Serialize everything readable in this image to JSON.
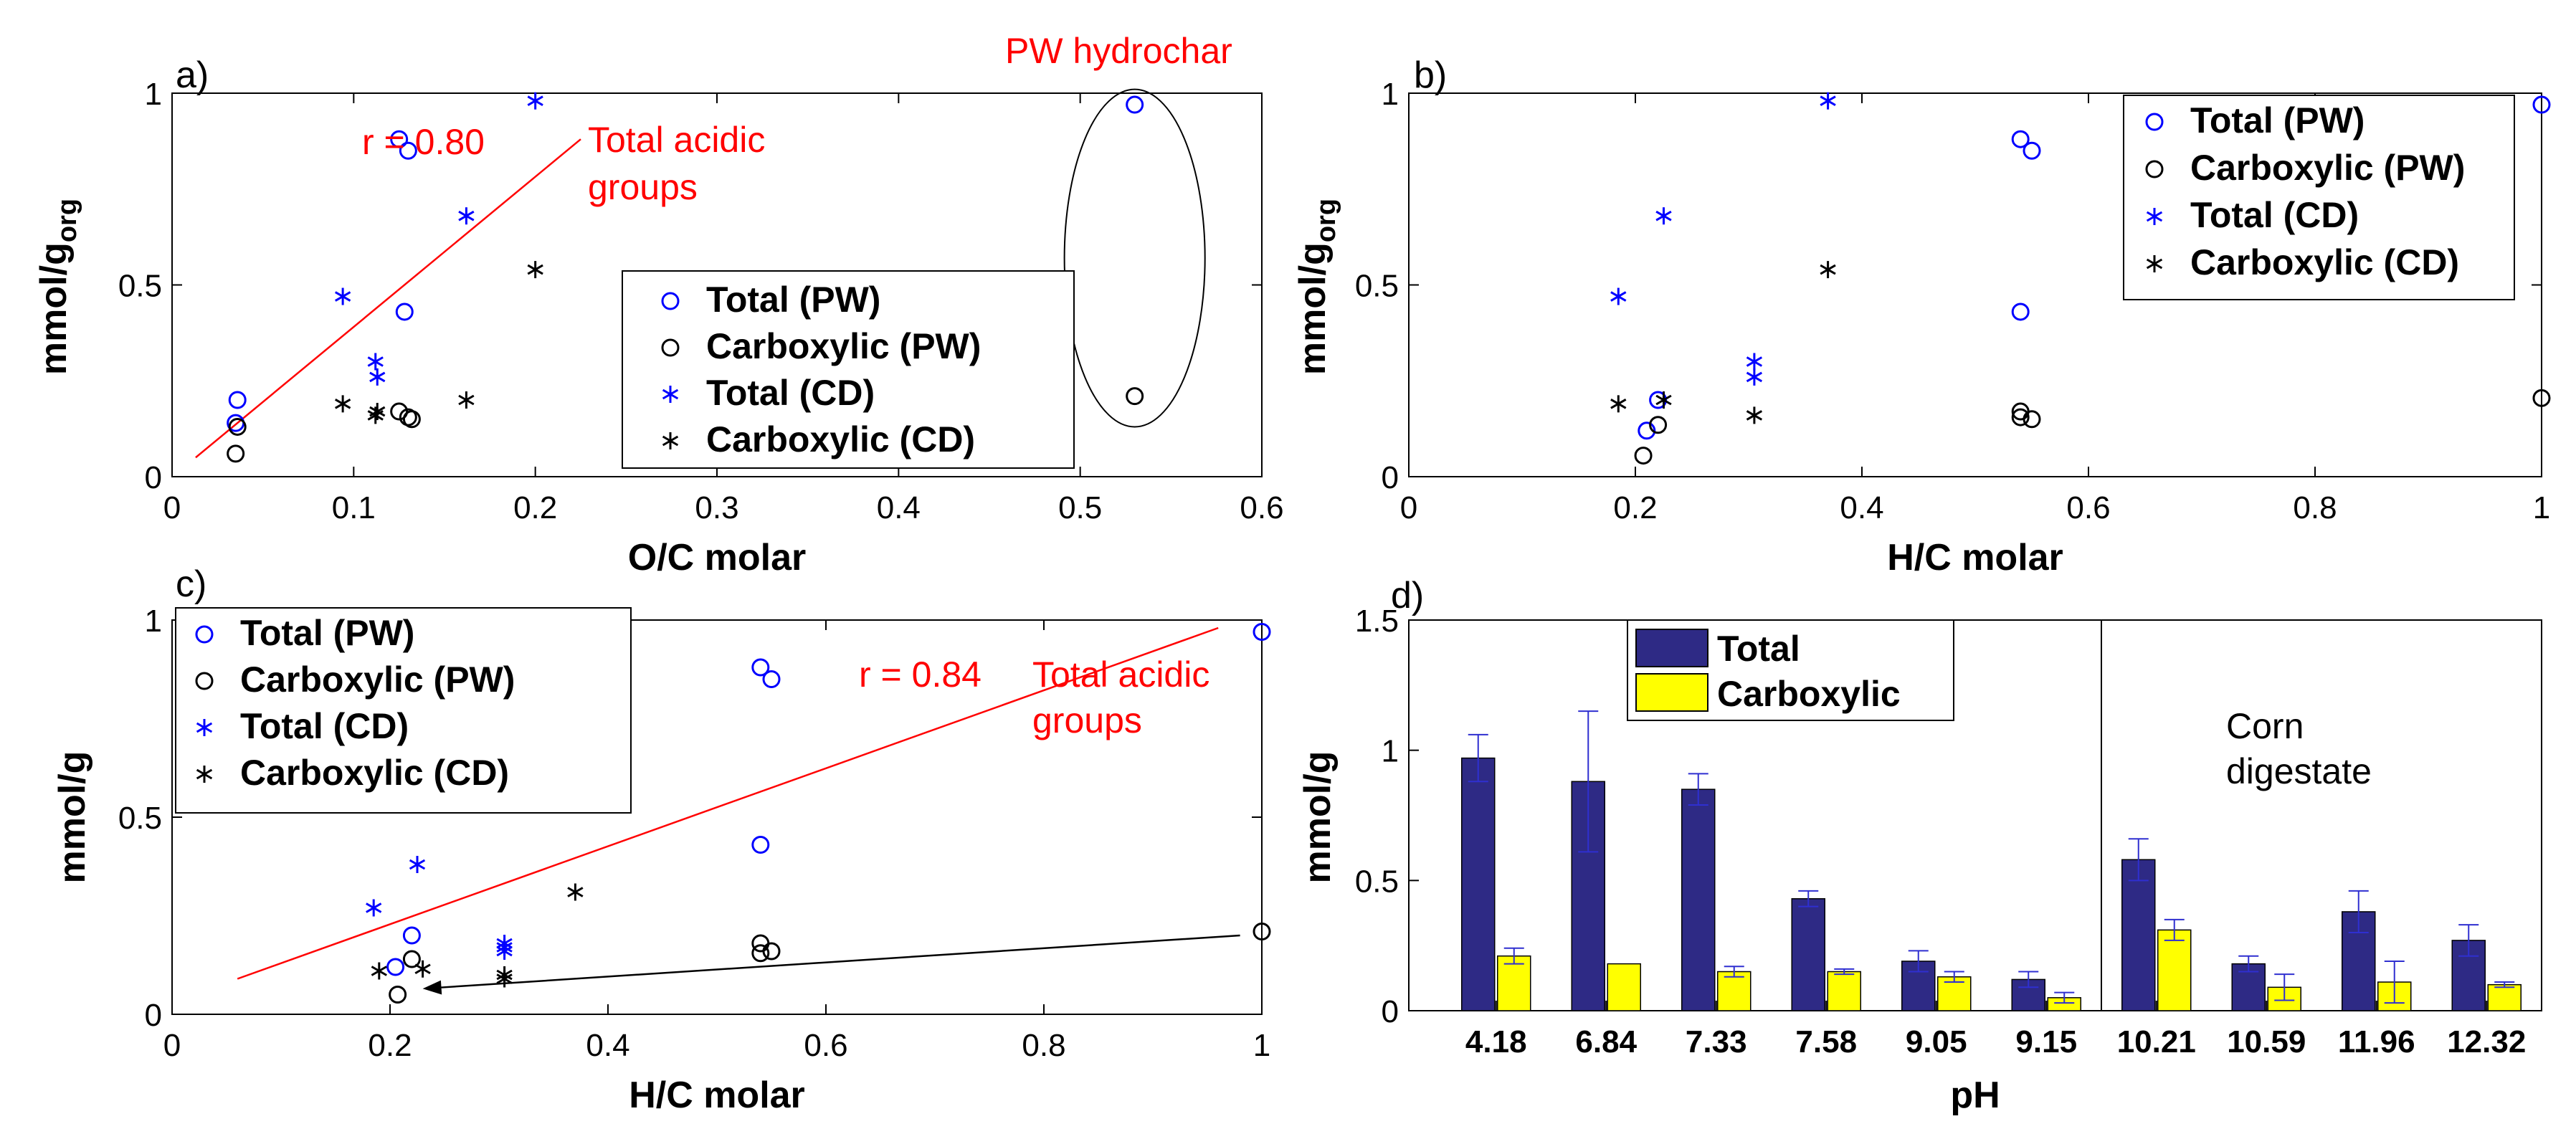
{
  "colors": {
    "total": "#0000ff",
    "carboxylic": "#000000",
    "fit": "#ff0000",
    "bar_total": "#2e2a85",
    "bar_carboxylic": "#ffff00",
    "errorbar": "#2f2fd0"
  },
  "chart_data": [
    {
      "id": "a",
      "type": "scatter",
      "panel_label": "a)",
      "xlabel": "O/C molar",
      "ylabel_main": "mmol/g",
      "ylabel_sub": "org",
      "xlim": [
        0,
        0.6
      ],
      "ylim": [
        0,
        1
      ],
      "xticks": [
        "0",
        "0.1",
        "0.2",
        "0.3",
        "0.4",
        "0.5",
        "0.6"
      ],
      "xtick_values": [
        0,
        0.1,
        0.2,
        0.3,
        0.4,
        0.5,
        0.6
      ],
      "yticks": [
        "0",
        "0.5",
        "1"
      ],
      "ytick_values": [
        0,
        0.5,
        1
      ],
      "legend": [
        "Total (PW)",
        "Carboxylic (PW)",
        "Total (CD)",
        "Carboxylic (CD)"
      ],
      "legend_position": "bottom-center",
      "series": [
        {
          "name": "Total (PW)",
          "marker": "circle",
          "color": "total",
          "points": [
            [
              0.036,
              0.2
            ],
            [
              0.035,
              0.14
            ],
            [
              0.125,
              0.88
            ],
            [
              0.13,
              0.85
            ],
            [
              0.128,
              0.43
            ],
            [
              0.53,
              0.97
            ]
          ]
        },
        {
          "name": "Carboxylic (PW)",
          "marker": "circle",
          "color": "carboxylic",
          "points": [
            [
              0.035,
              0.06
            ],
            [
              0.036,
              0.13
            ],
            [
              0.125,
              0.17
            ],
            [
              0.13,
              0.155
            ],
            [
              0.132,
              0.15
            ],
            [
              0.53,
              0.21
            ]
          ]
        },
        {
          "name": "Total (CD)",
          "marker": "star",
          "color": "total",
          "points": [
            [
              0.2,
              0.98
            ],
            [
              0.162,
              0.68
            ],
            [
              0.094,
              0.47
            ],
            [
              0.112,
              0.3
            ],
            [
              0.113,
              0.26
            ]
          ]
        },
        {
          "name": "Carboxylic (CD)",
          "marker": "star",
          "color": "carboxylic",
          "points": [
            [
              0.2,
              0.54
            ],
            [
              0.094,
              0.19
            ],
            [
              0.162,
              0.2
            ],
            [
              0.112,
              0.16
            ],
            [
              0.113,
              0.17
            ]
          ]
        }
      ],
      "fit_line": {
        "from": [
          0.013,
          0.05
        ],
        "to": [
          0.225,
          0.88
        ]
      },
      "annotations": {
        "r_label": "r = 0.80",
        "group_line1": "Total acidic",
        "group_line2": "groups",
        "highlight_label": "PW hydrochar"
      },
      "highlight_ellipse": {
        "center": [
          0.53,
          0.57
        ],
        "rx": 0.009,
        "ry": 0.44
      }
    },
    {
      "id": "b",
      "type": "scatter",
      "panel_label": "b)",
      "xlabel": "H/C molar",
      "ylabel_main": "mmol/g",
      "ylabel_sub": "org",
      "xlim": [
        0,
        1
      ],
      "ylim": [
        0,
        1
      ],
      "xticks": [
        "0",
        "0.2",
        "0.4",
        "0.6",
        "0.8",
        "1"
      ],
      "xtick_values": [
        0,
        0.2,
        0.4,
        0.6,
        0.8,
        1
      ],
      "yticks": [
        "0",
        "0.5",
        "1"
      ],
      "ytick_values": [
        0,
        0.5,
        1
      ],
      "legend": [
        "Total (PW)",
        "Carboxylic (PW)",
        "Total (CD)",
        "Carboxylic (CD)"
      ],
      "legend_position": "top-right",
      "series": [
        {
          "name": "Total (PW)",
          "marker": "circle",
          "color": "total",
          "points": [
            [
              0.21,
              0.12
            ],
            [
              0.22,
              0.2
            ],
            [
              0.54,
              0.88
            ],
            [
              0.55,
              0.85
            ],
            [
              0.54,
              0.43
            ],
            [
              1.0,
              0.97
            ]
          ]
        },
        {
          "name": "Carboxylic (PW)",
          "marker": "circle",
          "color": "carboxylic",
          "points": [
            [
              0.207,
              0.055
            ],
            [
              0.22,
              0.135
            ],
            [
              0.54,
              0.17
            ],
            [
              0.54,
              0.155
            ],
            [
              0.55,
              0.15
            ],
            [
              1.0,
              0.205
            ]
          ]
        },
        {
          "name": "Total (CD)",
          "marker": "star",
          "color": "total",
          "points": [
            [
              0.37,
              0.98
            ],
            [
              0.225,
              0.68
            ],
            [
              0.185,
              0.47
            ],
            [
              0.305,
              0.3
            ],
            [
              0.305,
              0.26
            ]
          ]
        },
        {
          "name": "Carboxylic (CD)",
          "marker": "star",
          "color": "carboxylic",
          "points": [
            [
              0.37,
              0.54
            ],
            [
              0.185,
              0.19
            ],
            [
              0.225,
              0.2
            ],
            [
              0.305,
              0.16
            ]
          ]
        }
      ]
    },
    {
      "id": "c",
      "type": "scatter",
      "panel_label": "c)",
      "xlabel": "H/C molar",
      "ylabel_main": "mmol/g",
      "xlim": [
        0,
        1
      ],
      "ylim": [
        0,
        1
      ],
      "xticks": [
        "0",
        "0.2",
        "0.4",
        "0.6",
        "0.8",
        "1"
      ],
      "xtick_values": [
        0,
        0.2,
        0.4,
        0.6,
        0.8,
        1
      ],
      "yticks": [
        "0",
        "0.5",
        "1"
      ],
      "ytick_values": [
        0,
        0.5,
        1
      ],
      "legend": [
        "Total (PW)",
        "Carboxylic (PW)",
        "Total (CD)",
        "Carboxylic (CD)"
      ],
      "legend_position": "top-left",
      "series": [
        {
          "name": "Total (PW)",
          "marker": "circle",
          "color": "total",
          "points": [
            [
              0.205,
              0.12
            ],
            [
              0.22,
              0.2
            ],
            [
              0.54,
              0.88
            ],
            [
              0.55,
              0.85
            ],
            [
              0.54,
              0.43
            ],
            [
              1.0,
              0.97
            ]
          ]
        },
        {
          "name": "Carboxylic (PW)",
          "marker": "circle",
          "color": "carboxylic",
          "points": [
            [
              0.207,
              0.05
            ],
            [
              0.22,
              0.14
            ],
            [
              0.54,
              0.18
            ],
            [
              0.54,
              0.155
            ],
            [
              0.55,
              0.16
            ],
            [
              1.0,
              0.21
            ]
          ]
        },
        {
          "name": "Total (CD)",
          "marker": "star",
          "color": "total",
          "points": [
            [
              0.185,
              0.27
            ],
            [
              0.225,
              0.38
            ],
            [
              0.305,
              0.18
            ],
            [
              0.305,
              0.17
            ],
            [
              0.305,
              0.16
            ]
          ]
        },
        {
          "name": "Carboxylic (CD)",
          "marker": "star",
          "color": "carboxylic",
          "points": [
            [
              0.37,
              0.31
            ],
            [
              0.19,
              0.11
            ],
            [
              0.23,
              0.115
            ],
            [
              0.305,
              0.1
            ],
            [
              0.305,
              0.09
            ]
          ]
        }
      ],
      "fit_line": {
        "from": [
          0.06,
          0.09
        ],
        "to": [
          0.96,
          0.98
        ]
      },
      "arrow": {
        "from": [
          0.98,
          0.2
        ],
        "to": [
          0.23,
          0.065
        ]
      },
      "annotations": {
        "r_label": "r = 0.84",
        "group_line1": "Total acidic",
        "group_line2": "groups"
      }
    },
    {
      "id": "d",
      "type": "bar",
      "panel_label": "d)",
      "xlabel": "pH",
      "ylabel": "mmol/g",
      "ylim": [
        0,
        1.5
      ],
      "yticks": [
        "0",
        "0.5",
        "1",
        "1.5"
      ],
      "ytick_values": [
        0,
        0.5,
        1,
        1.5
      ],
      "categories": [
        "4.18",
        "6.84",
        "7.33",
        "7.58",
        "9.05",
        "9.15",
        "10.21",
        "10.59",
        "11.96",
        "12.32"
      ],
      "series": [
        {
          "name": "Total",
          "color": "bar_total",
          "values": [
            0.97,
            0.88,
            0.85,
            0.43,
            0.19,
            0.12,
            0.58,
            0.18,
            0.38,
            0.27
          ],
          "errors": [
            0.09,
            0.27,
            0.06,
            0.03,
            0.04,
            0.03,
            0.08,
            0.03,
            0.08,
            0.06
          ]
        },
        {
          "name": "Carboxylic",
          "color": "bar_carboxylic",
          "values": [
            0.21,
            0.18,
            0.15,
            0.15,
            0.13,
            0.05,
            0.31,
            0.09,
            0.11,
            0.1
          ],
          "errors": [
            0.03,
            0.0,
            0.02,
            0.01,
            0.02,
            0.02,
            0.04,
            0.05,
            0.08,
            0.01
          ]
        }
      ],
      "legend": [
        "Total",
        "Carboxylic"
      ],
      "legend_position": "top-left",
      "group_box": {
        "from_category_index": 6,
        "line1": "Corn",
        "line2": "digestate"
      }
    }
  ]
}
